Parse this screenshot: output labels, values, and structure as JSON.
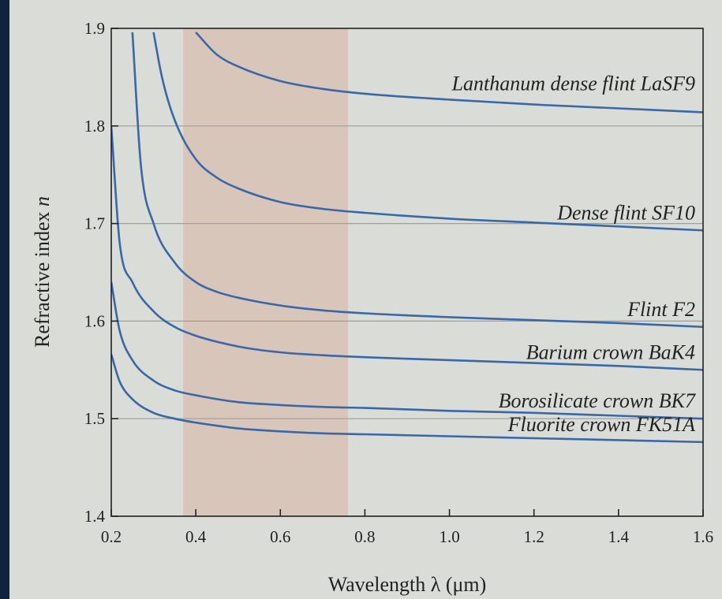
{
  "chart_data": {
    "type": "line",
    "title": "",
    "xlabel": "Wavelength λ (μm)",
    "ylabel_main": "Refractive index ",
    "ylabel_var": "n",
    "xlim": [
      0.2,
      1.6
    ],
    "ylim": [
      1.4,
      1.9
    ],
    "xticks": [
      0.2,
      0.4,
      0.6,
      0.8,
      1.0,
      1.2,
      1.4,
      1.6
    ],
    "xtick_labels": [
      "0.2",
      "0.4",
      "0.6",
      "0.8",
      "1.0",
      "1.2",
      "1.4",
      "1.6"
    ],
    "yticks": [
      1.4,
      1.5,
      1.6,
      1.7,
      1.8,
      1.9
    ],
    "ytick_labels": [
      "1.4",
      "1.5",
      "1.6",
      "1.7",
      "1.8",
      "1.9"
    ],
    "grid_y": [
      1.5,
      1.6,
      1.7,
      1.8
    ],
    "visible_band": [
      0.37,
      0.76
    ],
    "series": [
      {
        "name": "Lanthanum dense flint LaSF9",
        "x": [
          0.4,
          0.45,
          0.5,
          0.6,
          0.7,
          0.8,
          1.0,
          1.2,
          1.4,
          1.6
        ],
        "y": [
          1.896,
          1.873,
          1.861,
          1.846,
          1.838,
          1.833,
          1.827,
          1.822,
          1.818,
          1.814
        ]
      },
      {
        "name": "Dense flint SF10",
        "x": [
          0.3,
          0.32,
          0.35,
          0.4,
          0.45,
          0.5,
          0.6,
          0.7,
          0.8,
          1.0,
          1.2,
          1.4,
          1.6
        ],
        "y": [
          1.896,
          1.85,
          1.806,
          1.766,
          1.747,
          1.736,
          1.722,
          1.715,
          1.711,
          1.705,
          1.701,
          1.697,
          1.693
        ]
      },
      {
        "name": "Flint F2",
        "x": [
          0.25,
          0.27,
          0.3,
          0.35,
          0.4,
          0.45,
          0.5,
          0.6,
          0.7,
          0.8,
          1.0,
          1.2,
          1.4,
          1.6
        ],
        "y": [
          1.896,
          1.76,
          1.7,
          1.66,
          1.64,
          1.63,
          1.624,
          1.616,
          1.611,
          1.608,
          1.604,
          1.601,
          1.598,
          1.594
        ]
      },
      {
        "name": "Barium crown BaK4",
        "x": [
          0.2,
          0.22,
          0.25,
          0.3,
          0.35,
          0.4,
          0.5,
          0.6,
          0.7,
          0.8,
          1.0,
          1.2,
          1.4,
          1.6
        ],
        "y": [
          1.8,
          1.68,
          1.64,
          1.61,
          1.594,
          1.585,
          1.574,
          1.568,
          1.565,
          1.563,
          1.56,
          1.557,
          1.554,
          1.55
        ]
      },
      {
        "name": "Borosilicate crown BK7",
        "x": [
          0.2,
          0.22,
          0.25,
          0.3,
          0.35,
          0.4,
          0.5,
          0.6,
          0.7,
          0.8,
          1.0,
          1.2,
          1.4,
          1.6
        ],
        "y": [
          1.64,
          1.59,
          1.56,
          1.539,
          1.529,
          1.524,
          1.517,
          1.514,
          1.512,
          1.511,
          1.508,
          1.506,
          1.503,
          1.5
        ]
      },
      {
        "name": "Fluorite crown FK51A",
        "x": [
          0.2,
          0.22,
          0.25,
          0.3,
          0.35,
          0.4,
          0.5,
          0.6,
          0.7,
          0.8,
          1.0,
          1.2,
          1.4,
          1.6
        ],
        "y": [
          1.566,
          1.538,
          1.52,
          1.506,
          1.5,
          1.496,
          1.49,
          1.487,
          1.485,
          1.484,
          1.482,
          1.48,
          1.478,
          1.476
        ]
      }
    ],
    "colors": {
      "line": "#3a67a8",
      "band": "#d8c6bb",
      "background": "#d9dcd7",
      "grid": "#9aa09d",
      "axis": "#222222"
    }
  }
}
